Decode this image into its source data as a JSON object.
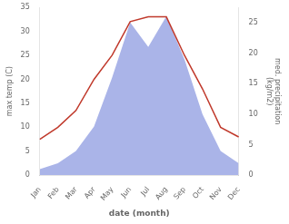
{
  "chart_data": {
    "type": "line",
    "categories": [
      "Jan",
      "Feb",
      "Mar",
      "Apr",
      "May",
      "Jun",
      "Jul",
      "Aug",
      "Sep",
      "Oct",
      "Nov",
      "Dec"
    ],
    "series": [
      {
        "type": "area",
        "axis": "y2",
        "color": "#aab4e8",
        "values": [
          1.0,
          2.0,
          4.0,
          8.0,
          16.0,
          25.0,
          21.0,
          26.0,
          19.0,
          10.0,
          4.0,
          2.0
        ]
      },
      {
        "type": "line",
        "axis": "y",
        "color": "#c0392b",
        "values": [
          7.5,
          10.0,
          13.5,
          20.0,
          25.0,
          32.0,
          33.0,
          33.0,
          25.0,
          18.0,
          10.0,
          8.0
        ]
      }
    ],
    "xlabel": "date (month)",
    "ylabel": "max temp (C)",
    "y2label": "med. precipitation\n(kg/m2)",
    "ylim": [
      0,
      35
    ],
    "yticks": [
      0,
      5,
      10,
      15,
      20,
      25,
      30,
      35
    ],
    "y2lim": [
      0,
      27.5
    ],
    "y2ticks": [
      0,
      5,
      10,
      15,
      20,
      25
    ],
    "grid": false
  }
}
